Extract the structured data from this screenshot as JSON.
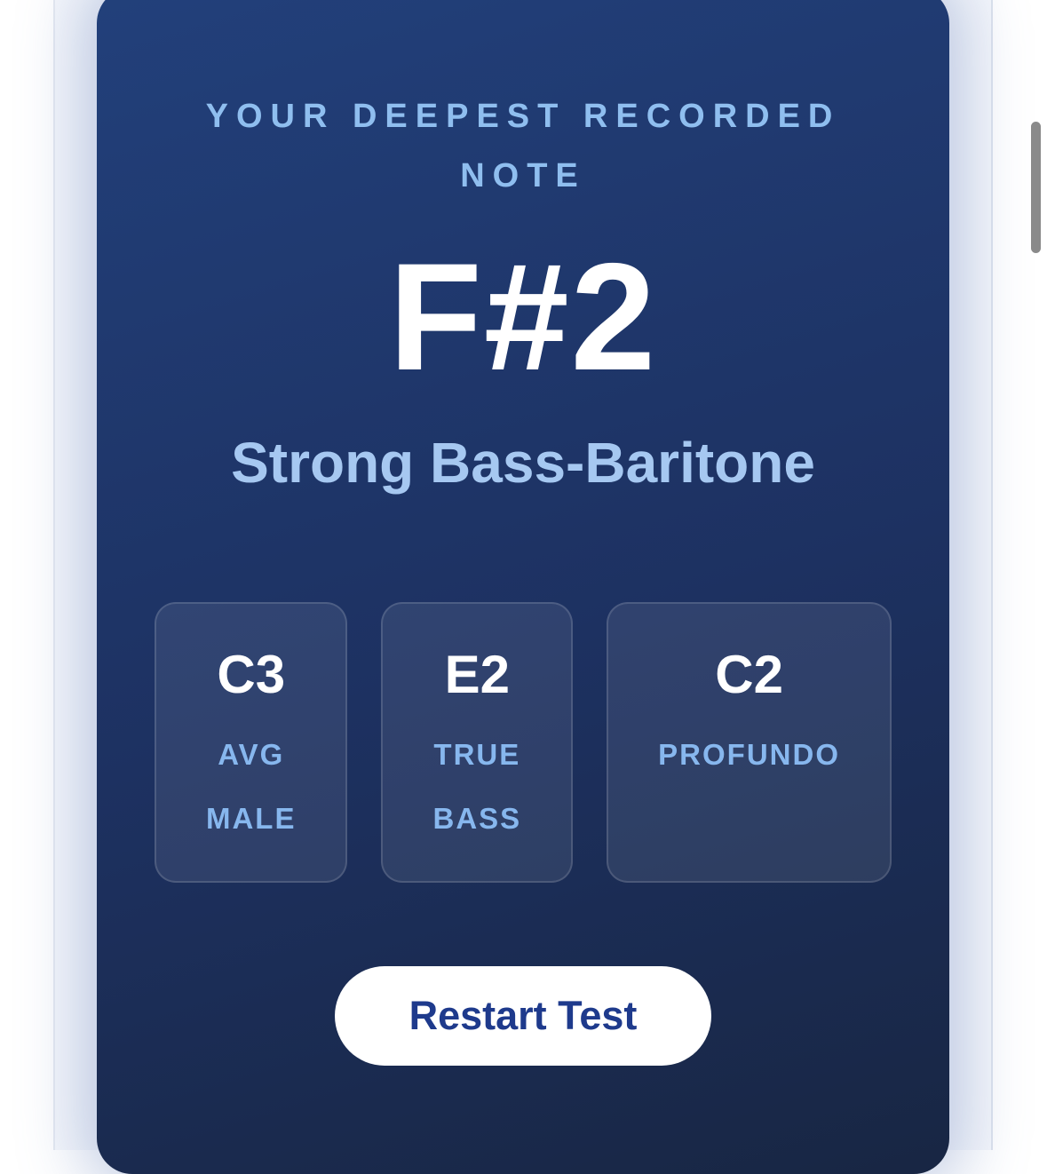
{
  "page": {
    "outer_bg": "#ffffff",
    "column_bg": "#f6f8fc"
  },
  "card": {
    "title": "YOUR DEEPEST RECORDED NOTE",
    "note": "F#2",
    "classification": "Strong Bass-Baritone",
    "colors": {
      "bg_top": "#22407b",
      "bg_mid": "#1d3161",
      "bg_bottom": "#182643",
      "title_text": "#8fbeef",
      "note_text": "#ffffff",
      "classification_text": "#a6c8f1",
      "ref_label_text": "#87b7ee"
    },
    "references": [
      {
        "note": "C3",
        "label": "AVG\nMALE"
      },
      {
        "note": "E2",
        "label": "TRUE\nBASS"
      },
      {
        "note": "C2",
        "label": "PROFUNDO"
      }
    ],
    "restart_label": "Restart Test",
    "restart_text_color": "#1e3a8c"
  },
  "scrollbar_color": "#8a8a8a"
}
